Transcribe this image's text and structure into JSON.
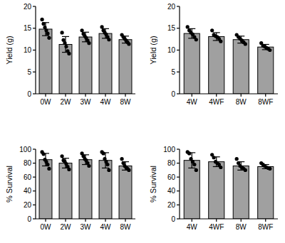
{
  "chart_data": [
    {
      "type": "bar",
      "y_label": "Yield (g)",
      "categories": [
        "0W",
        "2W",
        "3W",
        "4W",
        "8W"
      ],
      "values": [
        14.8,
        11.3,
        13.0,
        13.8,
        12.4
      ],
      "errors": [
        1.5,
        1.8,
        1.1,
        1.1,
        0.8
      ],
      "points": [
        [
          17.0,
          16.0,
          15.2,
          14.5,
          13.8,
          12.8
        ],
        [
          14.0,
          12.3,
          11.6,
          10.8,
          9.8,
          9.2
        ],
        [
          14.5,
          13.7,
          13.2,
          12.8,
          12.2,
          11.6
        ],
        [
          15.3,
          14.5,
          14.0,
          13.6,
          13.0,
          12.4
        ],
        [
          13.5,
          13.0,
          12.6,
          12.2,
          11.8,
          11.4
        ]
      ],
      "color": "#a0a0a0",
      "ylim": [
        0,
        20
      ],
      "yticks": [
        0,
        5,
        10,
        15,
        20
      ],
      "grid": false
    },
    {
      "type": "bar",
      "y_label": "Yield (g)",
      "categories": [
        "4W",
        "4WF",
        "8W",
        "8WF"
      ],
      "values": [
        13.8,
        13.1,
        12.4,
        10.7
      ],
      "errors": [
        1.1,
        0.9,
        0.8,
        0.6
      ],
      "points": [
        [
          15.3,
          14.5,
          14.0,
          13.6,
          13.0,
          12.4
        ],
        [
          14.5,
          13.5,
          13.2,
          13.0,
          12.6,
          12.0
        ],
        [
          13.5,
          13.0,
          12.6,
          12.2,
          11.8,
          11.4
        ],
        [
          11.6,
          11.0,
          10.8,
          10.5,
          10.3,
          10.0
        ]
      ],
      "color": "#a0a0a0",
      "ylim": [
        0,
        20
      ],
      "yticks": [
        0,
        5,
        10,
        15,
        20
      ],
      "grid": false
    },
    {
      "type": "bar",
      "y_label": "% Survival",
      "categories": [
        "0W",
        "2W",
        "3W",
        "4W",
        "8W"
      ],
      "values": [
        85,
        80,
        85,
        84,
        76
      ],
      "errors": [
        9,
        7,
        7,
        11,
        6
      ],
      "points": [
        [
          96,
          93,
          85,
          82,
          78,
          72
        ],
        [
          90,
          84,
          82,
          79,
          75,
          71
        ],
        [
          94,
          90,
          86,
          84,
          80,
          76
        ],
        [
          96,
          94,
          86,
          82,
          78,
          70
        ],
        [
          86,
          80,
          76,
          74,
          72,
          70
        ]
      ],
      "color": "#a0a0a0",
      "ylim": [
        0,
        100
      ],
      "yticks": [
        0,
        20,
        40,
        60,
        80,
        100
      ],
      "grid": false
    },
    {
      "type": "bar",
      "y_label": "% Survival",
      "categories": [
        "4W",
        "4WF",
        "8W",
        "8WF"
      ],
      "values": [
        84,
        82,
        76,
        75
      ],
      "errors": [
        11,
        7,
        6,
        3
      ],
      "points": [
        [
          96,
          94,
          86,
          82,
          78,
          70
        ],
        [
          92,
          88,
          82,
          80,
          78,
          74
        ],
        [
          86,
          80,
          76,
          74,
          72,
          70
        ],
        [
          80,
          78,
          76,
          74,
          73,
          72
        ]
      ],
      "color": "#a0a0a0",
      "ylim": [
        0,
        100
      ],
      "yticks": [
        0,
        20,
        40,
        60,
        80,
        100
      ],
      "grid": false
    }
  ]
}
